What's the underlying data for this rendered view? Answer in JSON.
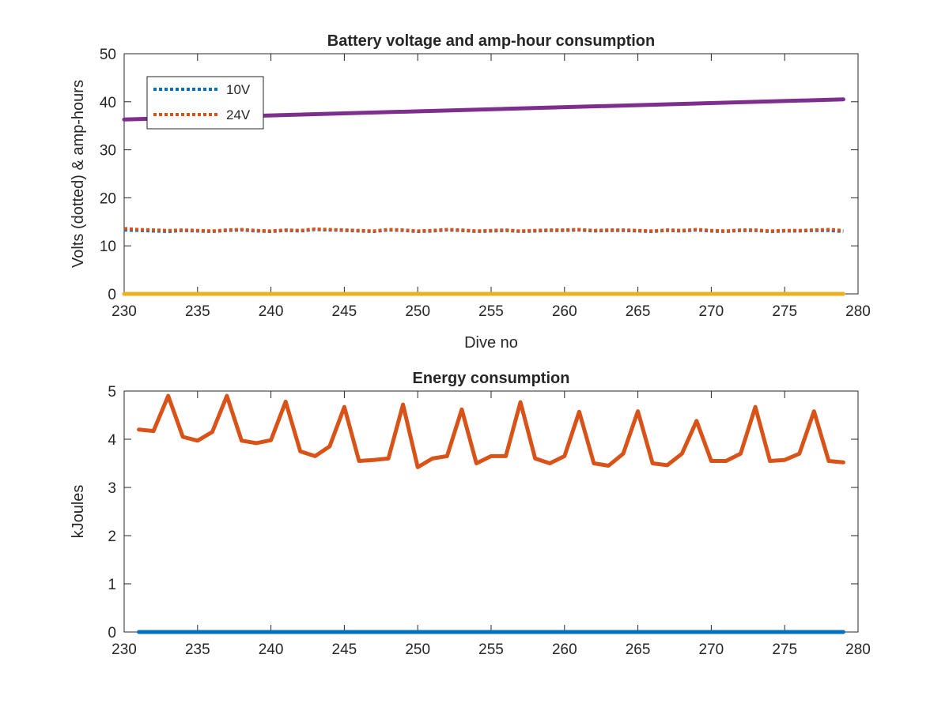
{
  "chart_data": [
    {
      "type": "line",
      "title": "Battery voltage and amp-hour consumption",
      "xlabel": "Dive no",
      "ylabel": "Volts (dotted) & amp-hours",
      "xlim": [
        230,
        280
      ],
      "ylim": [
        0,
        50
      ],
      "xticks": [
        "230",
        "235",
        "240",
        "245",
        "250",
        "255",
        "260",
        "265",
        "270",
        "275",
        "280"
      ],
      "yticks": [
        "0",
        "10",
        "20",
        "30",
        "40",
        "50"
      ],
      "legend": {
        "placement": "top-left",
        "entries": [
          "10V",
          "24V"
        ]
      },
      "series": [
        {
          "name": "10V",
          "style": "dotted",
          "color": "#0072BD",
          "x": [
            230,
            231,
            232,
            233,
            234,
            235,
            236,
            237,
            238,
            239,
            240,
            241,
            242,
            243,
            244,
            245,
            246,
            247,
            248,
            249,
            250,
            251,
            252,
            253,
            254,
            255,
            256,
            257,
            258,
            259,
            260,
            261,
            262,
            263,
            264,
            265,
            266,
            267,
            268,
            269,
            270,
            271,
            272,
            273,
            274,
            275,
            276,
            277,
            278,
            279
          ],
          "values": [
            13.3,
            13.2,
            13.1,
            13.0,
            13.2,
            13.1,
            13.0,
            13.2,
            13.3,
            13.1,
            13.0,
            13.2,
            13.1,
            13.4,
            13.3,
            13.2,
            13.1,
            13.0,
            13.3,
            13.2,
            13.0,
            13.1,
            13.3,
            13.2,
            13.0,
            13.1,
            13.2,
            13.0,
            13.1,
            13.2,
            13.2,
            13.3,
            13.1,
            13.2,
            13.2,
            13.1,
            13.0,
            13.2,
            13.1,
            13.3,
            13.1,
            13.0,
            13.2,
            13.2,
            13.0,
            13.1,
            13.1,
            13.2,
            13.2,
            13.0
          ]
        },
        {
          "name": "24V",
          "style": "dotted",
          "color": "#D95319",
          "x": [
            230,
            231,
            232,
            233,
            234,
            235,
            236,
            237,
            238,
            239,
            240,
            241,
            242,
            243,
            244,
            245,
            246,
            247,
            248,
            249,
            250,
            251,
            252,
            253,
            254,
            255,
            256,
            257,
            258,
            259,
            260,
            261,
            262,
            263,
            264,
            265,
            266,
            267,
            268,
            269,
            270,
            271,
            272,
            273,
            274,
            275,
            276,
            277,
            278,
            279
          ],
          "values": [
            13.6,
            13.4,
            13.3,
            13.2,
            13.3,
            13.2,
            13.1,
            13.3,
            13.4,
            13.2,
            13.1,
            13.3,
            13.2,
            13.5,
            13.4,
            13.3,
            13.2,
            13.1,
            13.4,
            13.3,
            13.1,
            13.2,
            13.4,
            13.3,
            13.1,
            13.2,
            13.3,
            13.1,
            13.2,
            13.3,
            13.3,
            13.4,
            13.2,
            13.3,
            13.3,
            13.2,
            13.1,
            13.3,
            13.2,
            13.4,
            13.2,
            13.1,
            13.3,
            13.3,
            13.1,
            13.2,
            13.2,
            13.3,
            13.4,
            13.2
          ]
        },
        {
          "style": "solid",
          "color": "#EDB120",
          "x": [
            230,
            279
          ],
          "values": [
            0,
            0
          ]
        },
        {
          "style": "solid",
          "color": "#7E2F8E",
          "x": [
            230,
            279
          ],
          "values": [
            36.3,
            40.5
          ]
        }
      ]
    },
    {
      "type": "line",
      "title": "Energy consumption",
      "xlabel": "",
      "ylabel": "kJoules",
      "xlim": [
        230,
        280
      ],
      "ylim": [
        0,
        5
      ],
      "xticks": [
        "230",
        "235",
        "240",
        "245",
        "250",
        "255",
        "260",
        "265",
        "270",
        "275",
        "280"
      ],
      "yticks": [
        "0",
        "1",
        "2",
        "3",
        "4",
        "5"
      ],
      "series": [
        {
          "style": "solid",
          "color": "#0072BD",
          "x": [
            231,
            279
          ],
          "values": [
            0,
            0
          ]
        },
        {
          "style": "solid",
          "color": "#D95319",
          "x": [
            231,
            232,
            233,
            234,
            235,
            236,
            237,
            238,
            239,
            240,
            241,
            242,
            243,
            244,
            245,
            246,
            247,
            248,
            249,
            250,
            251,
            252,
            253,
            254,
            255,
            256,
            257,
            258,
            259,
            260,
            261,
            262,
            263,
            264,
            265,
            266,
            267,
            268,
            269,
            270,
            271,
            272,
            273,
            274,
            275,
            276,
            277,
            278,
            279
          ],
          "values": [
            4.2,
            4.17,
            4.9,
            4.05,
            3.97,
            4.15,
            4.9,
            3.97,
            3.92,
            3.98,
            4.78,
            3.75,
            3.65,
            3.85,
            4.67,
            3.55,
            3.57,
            3.6,
            4.72,
            3.42,
            3.6,
            3.65,
            4.62,
            3.5,
            3.65,
            3.65,
            4.77,
            3.6,
            3.5,
            3.65,
            4.57,
            3.5,
            3.45,
            3.7,
            4.58,
            3.5,
            3.46,
            3.7,
            4.38,
            3.55,
            3.55,
            3.7,
            4.67,
            3.55,
            3.57,
            3.7,
            4.58,
            3.55,
            3.52
          ]
        }
      ]
    }
  ]
}
